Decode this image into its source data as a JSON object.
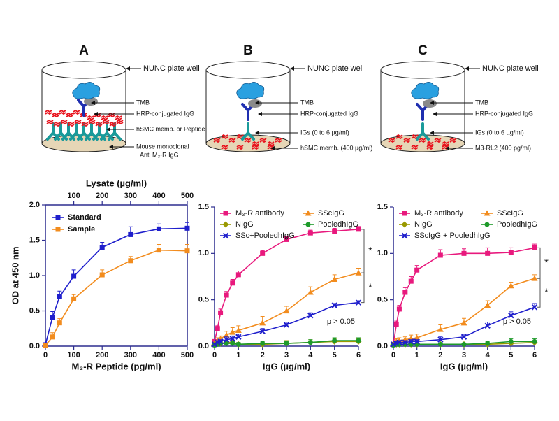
{
  "diagrams": [
    {
      "letter": "A",
      "labels": [
        "NUNC plate well",
        "TMB",
        "HRP-conjugated IgG",
        "hSMC memb. or Peptide",
        "Mouse monoclonal",
        "Anti M₃-R IgG"
      ]
    },
    {
      "letter": "B",
      "labels": [
        "NUNC plate well",
        "TMB",
        "HRP-conjugated IgG",
        "IGs (0 to 6 µg/ml)",
        "hSMC memb. (400 µg/ml)"
      ]
    },
    {
      "letter": "C",
      "labels": [
        "NUNC plate well",
        "TMB",
        "HRP-conjugated IgG",
        "IGs (0 to 6 µg/ml)",
        "M3-RL2 (400 pg/ml)"
      ]
    }
  ],
  "chart_data": [
    {
      "type": "line",
      "xlabel": "M₃-R Peptide (pg/ml)",
      "ylabel": "OD at 450 nm",
      "x2label": "Lysate (µg/ml)",
      "x": [
        0,
        25,
        50,
        100,
        200,
        300,
        400,
        500
      ],
      "xlim": [
        0,
        500
      ],
      "xticks": [
        0,
        100,
        200,
        300,
        400,
        500
      ],
      "x2lim": [
        0,
        500
      ],
      "x2ticks": [
        100,
        200,
        300,
        400,
        500
      ],
      "ylim": [
        0,
        2.0
      ],
      "yticks": [
        {
          "value": 0,
          "label": "0.0"
        },
        {
          "value": 0.5,
          "label": "0.5"
        },
        {
          "value": 1.0,
          "label": "1.0"
        },
        {
          "value": 1.5,
          "label": "1.5"
        },
        {
          "value": 2.0,
          "label": "2.0"
        }
      ],
      "legend": "top-left",
      "series": [
        {
          "name": "Standard",
          "color": "#1f1fcc",
          "marker": "square",
          "values": [
            0.02,
            0.41,
            0.7,
            0.99,
            1.4,
            1.58,
            1.66,
            1.67
          ],
          "errors": [
            0.01,
            0.08,
            0.08,
            0.09,
            0.07,
            0.11,
            0.07,
            0.08
          ]
        },
        {
          "name": "Sample",
          "color": "#f28c1e",
          "marker": "square",
          "values": [
            0.01,
            0.13,
            0.33,
            0.67,
            1.01,
            1.21,
            1.36,
            1.35
          ],
          "errors": [
            0.01,
            0.06,
            0.06,
            0.06,
            0.07,
            0.06,
            0.08,
            0.09
          ]
        }
      ]
    },
    {
      "type": "line",
      "xlabel": "IgG (µg/ml)",
      "x": [
        0,
        0.125,
        0.25,
        0.5,
        0.75,
        1,
        2,
        3,
        4,
        5,
        6
      ],
      "xlim": [
        0,
        6
      ],
      "xticks": [
        0,
        1,
        2,
        3,
        4,
        5,
        6
      ],
      "ylim": [
        0,
        1.5
      ],
      "yticks": [
        {
          "value": 0,
          "label": "0.0"
        },
        {
          "value": 0.5,
          "label": "0.5"
        },
        {
          "value": 1.0,
          "label": "1.0"
        },
        {
          "value": 1.5,
          "label": "1.5"
        }
      ],
      "legend": "top-left",
      "annotations": [
        "*",
        "*",
        "p > 0.05"
      ],
      "series": [
        {
          "name": "M₃-R antibody",
          "color": "#e8197d",
          "marker": "square",
          "values": [
            0.05,
            0.19,
            0.36,
            0.55,
            0.68,
            0.77,
            1.0,
            1.15,
            1.22,
            1.24,
            1.26
          ],
          "errors": [
            0.01,
            0.03,
            0.04,
            0.04,
            0.04,
            0.04,
            0.03,
            0.03,
            0.03,
            0.03,
            0.03
          ]
        },
        {
          "name": "SScIgG",
          "color": "#f28c1e",
          "marker": "triangle",
          "values": [
            0.03,
            0.06,
            0.08,
            0.12,
            0.15,
            0.17,
            0.25,
            0.38,
            0.58,
            0.72,
            0.79
          ],
          "errors": [
            0.01,
            0.03,
            0.03,
            0.04,
            0.05,
            0.05,
            0.07,
            0.05,
            0.06,
            0.05,
            0.05
          ]
        },
        {
          "name": "NIgG",
          "color": "#999900",
          "marker": "diamond",
          "values": [
            0.02,
            0.03,
            0.03,
            0.04,
            0.04,
            0.02,
            0.02,
            0.03,
            0.04,
            0.05,
            0.05
          ],
          "errors": [
            0.01,
            0.02,
            0.02,
            0.02,
            0.02,
            0.02,
            0.02,
            0.03,
            0.03,
            0.03,
            0.03
          ]
        },
        {
          "name": "PooledhIgG",
          "color": "#1e9a2a",
          "marker": "circle",
          "values": [
            0.01,
            0.02,
            0.03,
            0.03,
            0.03,
            0.02,
            0.03,
            0.03,
            0.04,
            0.06,
            0.06
          ],
          "errors": [
            0.01,
            0.02,
            0.02,
            0.02,
            0.02,
            0.02,
            0.02,
            0.02,
            0.03,
            0.03,
            0.03
          ]
        },
        {
          "name": "SSc+PooledhIgG",
          "color": "#1f1fcc",
          "marker": "cross",
          "values": [
            0.02,
            0.04,
            0.05,
            0.07,
            0.08,
            0.1,
            0.16,
            0.23,
            0.33,
            0.44,
            0.47
          ],
          "errors": [
            0.01,
            0.02,
            0.02,
            0.03,
            0.03,
            0.03,
            0.03,
            0.03,
            0.03,
            0.02,
            0.02
          ]
        }
      ]
    },
    {
      "type": "line",
      "xlabel": "IgG (µg/ml)",
      "x": [
        0,
        0.125,
        0.25,
        0.5,
        0.75,
        1,
        2,
        3,
        4,
        5,
        6
      ],
      "xlim": [
        0,
        6
      ],
      "xticks": [
        0,
        1,
        2,
        3,
        4,
        5,
        6
      ],
      "ylim": [
        0,
        1.5
      ],
      "yticks": [
        {
          "value": 0,
          "label": "0.0"
        },
        {
          "value": 0.5,
          "label": "0.5"
        },
        {
          "value": 1.0,
          "label": "1.0"
        },
        {
          "value": 1.5,
          "label": "1.5"
        }
      ],
      "legend": "top-left",
      "annotations": [
        "*",
        "*",
        "p > 0.05"
      ],
      "series": [
        {
          "name": "M₃-R antibody",
          "color": "#e8197d",
          "marker": "square",
          "values": [
            0.02,
            0.23,
            0.4,
            0.58,
            0.7,
            0.82,
            0.98,
            1.0,
            1.0,
            1.01,
            1.06
          ],
          "errors": [
            0.01,
            0.04,
            0.04,
            0.05,
            0.05,
            0.05,
            0.06,
            0.05,
            0.06,
            0.05,
            0.04
          ]
        },
        {
          "name": "SScIgG",
          "color": "#f28c1e",
          "marker": "triangle",
          "values": [
            0.02,
            0.05,
            0.06,
            0.07,
            0.08,
            0.09,
            0.18,
            0.25,
            0.44,
            0.65,
            0.73
          ],
          "errors": [
            0.01,
            0.03,
            0.03,
            0.03,
            0.04,
            0.04,
            0.05,
            0.05,
            0.05,
            0.04,
            0.04
          ]
        },
        {
          "name": "NIgG",
          "color": "#999900",
          "marker": "diamond",
          "values": [
            0.02,
            0.02,
            0.02,
            0.02,
            0.02,
            0.02,
            0.02,
            0.02,
            0.02,
            0.03,
            0.04
          ],
          "errors": [
            0.01,
            0.01,
            0.01,
            0.01,
            0.01,
            0.01,
            0.01,
            0.01,
            0.01,
            0.02,
            0.02
          ]
        },
        {
          "name": "PooledhIgG",
          "color": "#1e9a2a",
          "marker": "circle",
          "values": [
            0.01,
            0.02,
            0.02,
            0.02,
            0.02,
            0.02,
            0.02,
            0.02,
            0.03,
            0.05,
            0.05
          ],
          "errors": [
            0.01,
            0.01,
            0.01,
            0.01,
            0.01,
            0.01,
            0.01,
            0.01,
            0.02,
            0.03,
            0.03
          ]
        },
        {
          "name": "SScIgG + PooledhIgG",
          "color": "#1f1fcc",
          "marker": "cross",
          "values": [
            0.02,
            0.03,
            0.04,
            0.04,
            0.05,
            0.05,
            0.07,
            0.1,
            0.22,
            0.33,
            0.42
          ],
          "errors": [
            0.01,
            0.02,
            0.02,
            0.02,
            0.02,
            0.02,
            0.03,
            0.03,
            0.04,
            0.04,
            0.04
          ]
        }
      ]
    }
  ]
}
